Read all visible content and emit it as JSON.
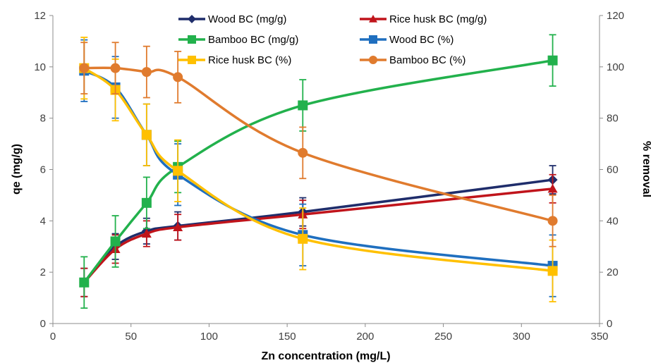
{
  "chart_data": {
    "type": "line",
    "x": [
      20,
      40,
      60,
      80,
      160,
      320
    ],
    "xlabel": "Zn concentration (mg/L)",
    "ylabel": "qe (mg/g)",
    "y2label": "% removal",
    "xlim": [
      0,
      350
    ],
    "ylim": [
      0,
      12
    ],
    "y2lim": [
      0,
      120
    ],
    "xticks": [
      0,
      50,
      100,
      150,
      200,
      250,
      300,
      350
    ],
    "yticks": [
      0,
      2,
      4,
      6,
      8,
      10,
      12
    ],
    "y2ticks": [
      0,
      20,
      40,
      60,
      80,
      100,
      120
    ],
    "grid": false,
    "legend_position": "top, inside plot, two columns",
    "series": [
      {
        "name": "Wood BC (mg/g)",
        "axis": "left",
        "color": "#1f2d6b",
        "marker": "diamond",
        "values": [
          1.6,
          3.0,
          3.6,
          3.8,
          4.35,
          5.6
        ],
        "errors": [
          0.55,
          0.5,
          0.5,
          0.55,
          0.55,
          0.55
        ]
      },
      {
        "name": "Rice husk BC (mg/g)",
        "axis": "left",
        "color": "#c0141b",
        "marker": "triangle",
        "values": [
          1.6,
          2.9,
          3.5,
          3.75,
          4.25,
          5.25
        ],
        "errors": [
          0.55,
          0.55,
          0.5,
          0.5,
          0.55,
          0.55
        ]
      },
      {
        "name": "Bamboo BC (mg/g)",
        "axis": "left",
        "color": "#22b14c",
        "marker": "square",
        "values": [
          1.6,
          3.2,
          4.7,
          6.1,
          8.5,
          10.25
        ],
        "errors": [
          1.0,
          1.0,
          1.0,
          1.0,
          1.0,
          1.0
        ]
      },
      {
        "name": "Wood BC (%)",
        "axis": "right",
        "color": "#1f6fbf",
        "marker": "square",
        "values": [
          98.5,
          92,
          73.5,
          58,
          34.5,
          22.5
        ],
        "errors": [
          12,
          12,
          12,
          12,
          12,
          12
        ]
      },
      {
        "name": "Rice husk BC (%)",
        "axis": "right",
        "color": "#ffc000",
        "marker": "square",
        "values": [
          99.5,
          91,
          73.5,
          59.5,
          33,
          20.5
        ],
        "errors": [
          12,
          12,
          12,
          12,
          12,
          12
        ]
      },
      {
        "name": "Bamboo BC (%)",
        "axis": "right",
        "color": "#e07b2e",
        "marker": "circle",
        "values": [
          99.5,
          99.5,
          98,
          96,
          66.5,
          40
        ],
        "errors": [
          10,
          10,
          10,
          10,
          10,
          10
        ]
      }
    ]
  }
}
